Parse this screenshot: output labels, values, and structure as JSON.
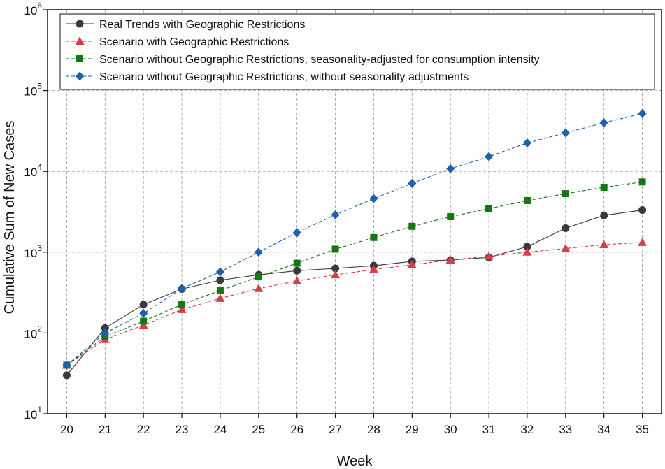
{
  "chart_data": {
    "type": "line",
    "title": "",
    "xlabel": "Week",
    "ylabel": "Cumulative Sum of New Cases",
    "yscale": "log",
    "xlim": [
      19.5,
      35.5
    ],
    "ylim": [
      10,
      1000000
    ],
    "grid": true,
    "legend_position": "top-left",
    "x": [
      20,
      21,
      22,
      23,
      24,
      25,
      26,
      27,
      28,
      29,
      30,
      31,
      32,
      33,
      34,
      35
    ],
    "x_ticks": [
      "20",
      "21",
      "22",
      "23",
      "24",
      "25",
      "26",
      "27",
      "28",
      "29",
      "30",
      "31",
      "32",
      "33",
      "34",
      "35"
    ],
    "y_ticks": [
      {
        "value": 10,
        "base": "10",
        "exp": "1"
      },
      {
        "value": 100,
        "base": "10",
        "exp": "2"
      },
      {
        "value": 1000,
        "base": "10",
        "exp": "3"
      },
      {
        "value": 10000,
        "base": "10",
        "exp": "4"
      },
      {
        "value": 100000,
        "base": "10",
        "exp": "5"
      },
      {
        "value": 1000000,
        "base": "10",
        "exp": "6"
      }
    ],
    "series": [
      {
        "name": "Real Trends with Geographic Restrictions",
        "color": "#3a3a3a",
        "marker": "circle",
        "line": "solid",
        "values": [
          30,
          115,
          225,
          350,
          450,
          525,
          590,
          630,
          680,
          770,
          800,
          860,
          1170,
          1980,
          2850,
          3320
        ]
      },
      {
        "name": "Scenario with Geographic Restrictions",
        "color": "#d63e48",
        "marker": "triangle",
        "line": "dashed",
        "values": [
          40,
          83,
          125,
          195,
          268,
          355,
          440,
          525,
          610,
          700,
          800,
          890,
          1000,
          1110,
          1240,
          1320
        ]
      },
      {
        "name": "Scenario without Geographic Restrictions, seasonality-adjusted for consumption intensity",
        "color": "#137813",
        "marker": "square",
        "line": "dashed",
        "values": [
          40,
          90,
          140,
          225,
          335,
          495,
          730,
          1090,
          1520,
          2090,
          2750,
          3450,
          4350,
          5300,
          6350,
          7400
        ]
      },
      {
        "name": "Scenario without Geographic Restrictions, without seasonality adjustments",
        "color": "#1f5fb0",
        "marker": "diamond",
        "line": "dashed",
        "values": [
          40,
          100,
          175,
          355,
          570,
          1000,
          1750,
          2900,
          4600,
          7100,
          10800,
          15200,
          22500,
          30000,
          40000,
          52000
        ]
      }
    ]
  }
}
